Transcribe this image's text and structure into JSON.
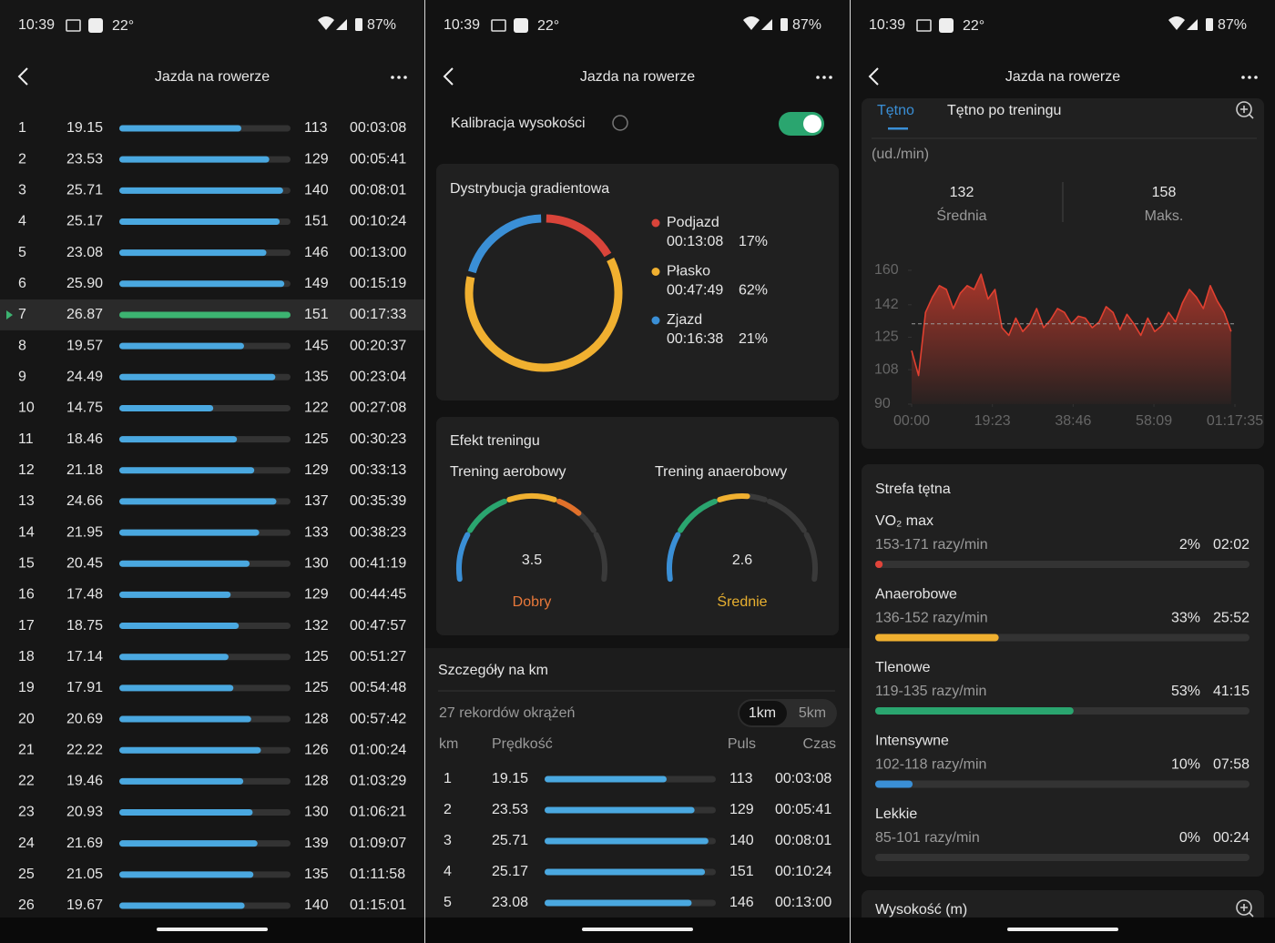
{
  "status": {
    "time": "10:39",
    "temp": "22°",
    "battery": "87%"
  },
  "header": {
    "title": "Jazda na rowerze"
  },
  "laps": [
    {
      "km": 1,
      "speed": 19.15,
      "pulse": 113,
      "time": "00:03:08"
    },
    {
      "km": 2,
      "speed": 23.53,
      "pulse": 129,
      "time": "00:05:41"
    },
    {
      "km": 3,
      "speed": 25.71,
      "pulse": 140,
      "time": "00:08:01"
    },
    {
      "km": 4,
      "speed": 25.17,
      "pulse": 151,
      "time": "00:10:24"
    },
    {
      "km": 5,
      "speed": 23.08,
      "pulse": 146,
      "time": "00:13:00"
    },
    {
      "km": 6,
      "speed": 25.9,
      "speed_label": "25.90",
      "pulse": 149,
      "time": "00:15:19"
    },
    {
      "km": 7,
      "speed": 26.87,
      "pulse": 151,
      "time": "00:17:33",
      "selected": true
    },
    {
      "km": 8,
      "speed": 19.57,
      "pulse": 145,
      "time": "00:20:37"
    },
    {
      "km": 9,
      "speed": 24.49,
      "pulse": 135,
      "time": "00:23:04"
    },
    {
      "km": 10,
      "speed": 14.75,
      "pulse": 122,
      "time": "00:27:08"
    },
    {
      "km": 11,
      "speed": 18.46,
      "pulse": 125,
      "time": "00:30:23"
    },
    {
      "km": 12,
      "speed": 21.18,
      "pulse": 129,
      "time": "00:33:13"
    },
    {
      "km": 13,
      "speed": 24.66,
      "pulse": 137,
      "time": "00:35:39"
    },
    {
      "km": 14,
      "speed": 21.95,
      "pulse": 133,
      "time": "00:38:23"
    },
    {
      "km": 15,
      "speed": 20.45,
      "pulse": 130,
      "time": "00:41:19"
    },
    {
      "km": 16,
      "speed": 17.48,
      "pulse": 129,
      "time": "00:44:45"
    },
    {
      "km": 17,
      "speed": 18.75,
      "pulse": 132,
      "time": "00:47:57"
    },
    {
      "km": 18,
      "speed": 17.14,
      "pulse": 125,
      "time": "00:51:27"
    },
    {
      "km": 19,
      "speed": 17.91,
      "pulse": 125,
      "time": "00:54:48"
    },
    {
      "km": 20,
      "speed": 20.69,
      "pulse": 128,
      "time": "00:57:42"
    },
    {
      "km": 21,
      "speed": 22.22,
      "pulse": 126,
      "time": "01:00:24"
    },
    {
      "km": 22,
      "speed": 19.46,
      "pulse": 128,
      "time": "01:03:29"
    },
    {
      "km": 23,
      "speed": 20.93,
      "pulse": 130,
      "time": "01:06:21"
    },
    {
      "km": 24,
      "speed": 21.69,
      "pulse": 139,
      "time": "01:09:07"
    },
    {
      "km": 25,
      "speed": 21.05,
      "pulse": 135,
      "time": "01:11:58"
    },
    {
      "km": 26,
      "speed": 19.67,
      "pulse": 140,
      "time": "01:15:01"
    }
  ],
  "bar_color": "#4aa8e0",
  "selected_color": "#3cb371",
  "calibration": {
    "label": "Kalibracja wysokości",
    "enabled": true
  },
  "gradient": {
    "title": "Dystrybucja gradientowa",
    "segments": [
      {
        "name": "Podjazd",
        "time": "00:13:08",
        "percent": 17,
        "percent_label": "17%",
        "color": "#d9443a"
      },
      {
        "name": "Płasko",
        "time": "00:47:49",
        "percent": 62,
        "percent_label": "62%",
        "color": "#f0b030"
      },
      {
        "name": "Zjazd",
        "time": "00:16:38",
        "percent": 21,
        "percent_label": "21%",
        "color": "#3a8fd6"
      }
    ]
  },
  "training_effect": {
    "title": "Efekt treningu",
    "range": [
      0,
      5
    ],
    "segment_colors": [
      "#3a8fd6",
      "#2aa56f",
      "#f0b030",
      "#e0702a",
      "#e04a3a"
    ],
    "gauges": [
      {
        "label": "Trening aerobowy",
        "value": 3.5,
        "rating": "Dobry",
        "rating_color": "#e8783a"
      },
      {
        "label": "Trening anaerobowy",
        "value": 2.6,
        "rating": "Średnie",
        "rating_color": "#e8b030"
      }
    ]
  },
  "km_details": {
    "title": "Szczegóły na km",
    "records": "27 rekordów okrążeń",
    "units": [
      "1km",
      "5km"
    ],
    "columns": [
      "km",
      "Prędkość",
      "Puls",
      "Czas"
    ]
  },
  "heart_rate": {
    "tabs": [
      "Tętno",
      "Tętno po treningu"
    ],
    "unit": "(ud./min)",
    "average": 132,
    "average_label": "Średnia",
    "max": 158,
    "max_label": "Maks."
  },
  "chart_data": {
    "type": "line",
    "color": "#e04030",
    "x": [
      0,
      100,
      200,
      300,
      400,
      500,
      600,
      700,
      800,
      900,
      1000,
      1100,
      1200,
      1300,
      1400,
      1500,
      1600,
      1700,
      1800,
      1900,
      2000,
      2100,
      2200,
      2300,
      2400,
      2500,
      2600,
      2700,
      2800,
      2900,
      3000,
      3100,
      3200,
      3300,
      3400,
      3500,
      3600,
      3700,
      3800,
      3900,
      4000,
      4100,
      4200,
      4300,
      4400,
      4500,
      4600
    ],
    "values": [
      118,
      105,
      138,
      146,
      152,
      150,
      140,
      148,
      152,
      150,
      158,
      145,
      150,
      130,
      126,
      135,
      128,
      132,
      140,
      130,
      134,
      140,
      138,
      132,
      136,
      135,
      130,
      133,
      141,
      138,
      129,
      137,
      132,
      126,
      135,
      128,
      131,
      138,
      133,
      143,
      150,
      146,
      140,
      152,
      144,
      138,
      128
    ],
    "xlim": [
      0,
      4655
    ],
    "xticks": [
      {
        "value": 0,
        "label": "00:00"
      },
      {
        "value": 1163,
        "label": "19:23"
      },
      {
        "value": 2326,
        "label": "38:46"
      },
      {
        "value": 3489,
        "label": "58:09"
      },
      {
        "value": 4655,
        "label": "01:17:35"
      }
    ],
    "ylim": [
      90,
      160
    ],
    "yticks": [
      90,
      108,
      125,
      142,
      160
    ]
  },
  "zones": {
    "title": "Strefa tętna",
    "items": [
      {
        "name": "VO₂ max",
        "range": "153-171 razy/min",
        "percent": 2,
        "percent_label": "2%",
        "time": "02:02",
        "color": "#e0443a"
      },
      {
        "name": "Anaerobowe",
        "range": "136-152 razy/min",
        "percent": 33,
        "percent_label": "33%",
        "time": "25:52",
        "color": "#f0b030"
      },
      {
        "name": "Tlenowe",
        "range": "119-135 razy/min",
        "percent": 53,
        "percent_label": "53%",
        "time": "41:15",
        "color": "#2aa56f"
      },
      {
        "name": "Intensywne",
        "range": "102-118 razy/min",
        "percent": 10,
        "percent_label": "10%",
        "time": "07:58",
        "color": "#3a8fd6"
      },
      {
        "name": "Lekkie",
        "range": "85-101 razy/min",
        "percent": 0,
        "percent_label": "0%",
        "time": "00:24",
        "color": "#888888"
      }
    ]
  },
  "altitude": {
    "title": "Wysokość (m)"
  }
}
